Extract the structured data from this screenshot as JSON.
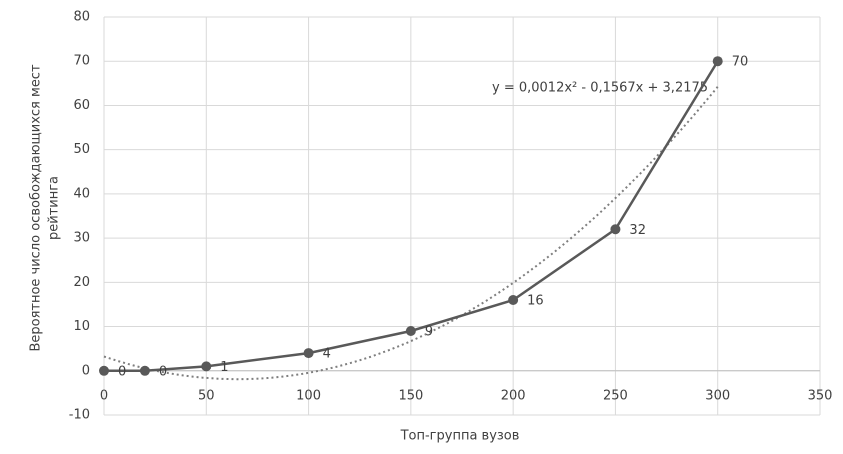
{
  "chart_data": {
    "type": "line",
    "x": [
      0,
      20,
      50,
      100,
      150,
      200,
      250,
      300
    ],
    "series": [
      {
        "color": "#595959",
        "values": [
          0,
          0,
          1,
          4,
          9,
          16,
          32,
          70
        ]
      }
    ],
    "xlim": [
      0,
      350
    ],
    "xticks": [
      0,
      50,
      100,
      150,
      200,
      250,
      300,
      350
    ],
    "ylim": [
      -10,
      80
    ],
    "yticks": [
      -10,
      0,
      10,
      20,
      30,
      40,
      50,
      60,
      70,
      80
    ],
    "grid": true,
    "xlabel": "Топ-группа вузов",
    "ylabel": [
      "Вероятное число освобождающихся мест",
      "рейтинга"
    ],
    "trendline": {
      "coefficients": [
        0.0012,
        -0.1567,
        3.2175
      ],
      "color": "#7f7f7f",
      "label": "y = 0,0012x² - 0,1567x + 3,2175"
    }
  }
}
